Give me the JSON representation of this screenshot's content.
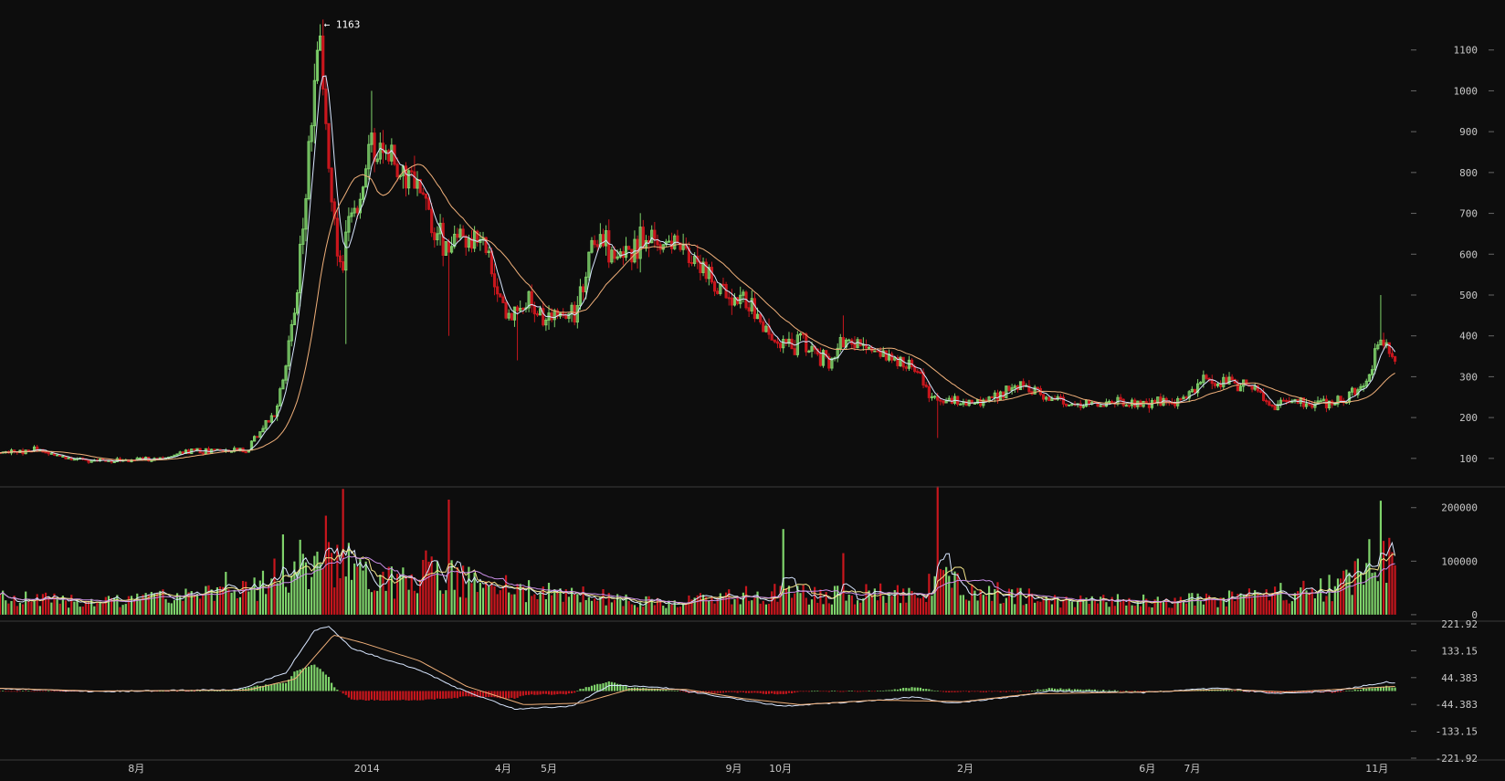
{
  "chart_data": {
    "type": "candlestick",
    "colors": {
      "background": "#0d0d0d",
      "up": "#7fd36b",
      "down": "#c8161d",
      "ma_short": "#d8e6ff",
      "ma_long": "#f0b07a",
      "volume_ma1": "#d8e6ff",
      "volume_ma2": "#f3e58a",
      "volume_ma3": "#c98ee6",
      "macd_line": "#d8e6ff",
      "signal_line": "#f0b07a",
      "grid_divider": "#3a3a3a",
      "axis_text": "#c8c8c8"
    },
    "price_panel": {
      "y_ticks": [
        "100",
        "200",
        "300",
        "400",
        "500",
        "600",
        "700",
        "800",
        "900",
        "1000",
        "1100"
      ],
      "ylim": [
        37,
        1200
      ],
      "peak_label": "← 1163",
      "peak_value": 1163,
      "anchors": [
        {
          "d": 0,
          "v": 114
        },
        {
          "d": 40,
          "v": 122
        },
        {
          "d": 70,
          "v": 100
        },
        {
          "d": 100,
          "v": 96
        },
        {
          "d": 130,
          "v": 95
        },
        {
          "d": 165,
          "v": 100
        },
        {
          "d": 200,
          "v": 117
        },
        {
          "d": 230,
          "v": 118
        },
        {
          "d": 258,
          "v": 120
        },
        {
          "d": 272,
          "v": 160
        },
        {
          "d": 290,
          "v": 220
        },
        {
          "d": 302,
          "v": 360
        },
        {
          "d": 312,
          "v": 520
        },
        {
          "d": 322,
          "v": 800
        },
        {
          "d": 330,
          "v": 1050
        },
        {
          "d": 336,
          "v": 1100
        },
        {
          "d": 342,
          "v": 900
        },
        {
          "d": 350,
          "v": 680
        },
        {
          "d": 358,
          "v": 560
        },
        {
          "d": 366,
          "v": 700
        },
        {
          "d": 376,
          "v": 720
        },
        {
          "d": 385,
          "v": 820
        },
        {
          "d": 395,
          "v": 870
        },
        {
          "d": 410,
          "v": 820
        },
        {
          "d": 425,
          "v": 790
        },
        {
          "d": 438,
          "v": 800
        },
        {
          "d": 448,
          "v": 710
        },
        {
          "d": 460,
          "v": 650
        },
        {
          "d": 472,
          "v": 600
        },
        {
          "d": 483,
          "v": 640
        },
        {
          "d": 498,
          "v": 640
        },
        {
          "d": 510,
          "v": 600
        },
        {
          "d": 520,
          "v": 510
        },
        {
          "d": 532,
          "v": 450
        },
        {
          "d": 545,
          "v": 460
        },
        {
          "d": 556,
          "v": 500
        },
        {
          "d": 570,
          "v": 440
        },
        {
          "d": 590,
          "v": 440
        },
        {
          "d": 602,
          "v": 450
        },
        {
          "d": 612,
          "v": 520
        },
        {
          "d": 620,
          "v": 620
        },
        {
          "d": 630,
          "v": 650
        },
        {
          "d": 642,
          "v": 600
        },
        {
          "d": 660,
          "v": 590
        },
        {
          "d": 675,
          "v": 640
        },
        {
          "d": 695,
          "v": 630
        },
        {
          "d": 715,
          "v": 620
        },
        {
          "d": 732,
          "v": 590
        },
        {
          "d": 748,
          "v": 520
        },
        {
          "d": 765,
          "v": 490
        },
        {
          "d": 785,
          "v": 480
        },
        {
          "d": 800,
          "v": 430
        },
        {
          "d": 815,
          "v": 380
        },
        {
          "d": 828,
          "v": 370
        },
        {
          "d": 840,
          "v": 390
        },
        {
          "d": 855,
          "v": 350
        },
        {
          "d": 870,
          "v": 340
        },
        {
          "d": 885,
          "v": 390
        },
        {
          "d": 900,
          "v": 380
        },
        {
          "d": 920,
          "v": 370
        },
        {
          "d": 940,
          "v": 340
        },
        {
          "d": 960,
          "v": 320
        },
        {
          "d": 975,
          "v": 260
        },
        {
          "d": 990,
          "v": 230
        },
        {
          "d": 1000,
          "v": 240
        },
        {
          "d": 1020,
          "v": 230
        },
        {
          "d": 1040,
          "v": 250
        },
        {
          "d": 1060,
          "v": 270
        },
        {
          "d": 1080,
          "v": 275
        },
        {
          "d": 1100,
          "v": 250
        },
        {
          "d": 1130,
          "v": 230
        },
        {
          "d": 1160,
          "v": 235
        },
        {
          "d": 1200,
          "v": 235
        },
        {
          "d": 1230,
          "v": 240
        },
        {
          "d": 1250,
          "v": 260
        },
        {
          "d": 1265,
          "v": 290
        },
        {
          "d": 1285,
          "v": 285
        },
        {
          "d": 1300,
          "v": 280
        },
        {
          "d": 1320,
          "v": 265
        },
        {
          "d": 1338,
          "v": 225
        },
        {
          "d": 1360,
          "v": 240
        },
        {
          "d": 1385,
          "v": 235
        },
        {
          "d": 1410,
          "v": 245
        },
        {
          "d": 1425,
          "v": 270
        },
        {
          "d": 1440,
          "v": 320
        },
        {
          "d": 1448,
          "v": 390
        },
        {
          "d": 1455,
          "v": 380
        },
        {
          "d": 1463,
          "v": 345
        }
      ],
      "spikes": [
        {
          "d": 336,
          "v": 1163
        },
        {
          "d": 362,
          "v": 380
        },
        {
          "d": 390,
          "v": 1000
        },
        {
          "d": 470,
          "v": 400
        },
        {
          "d": 544,
          "v": 340
        },
        {
          "d": 884,
          "v": 450
        },
        {
          "d": 985,
          "v": 150
        },
        {
          "d": 1450,
          "v": 500
        }
      ]
    },
    "volume_panel": {
      "y_ticks": [
        "0",
        "100000",
        "200000"
      ],
      "ylim": [
        -7000,
        232000
      ],
      "level_anchors": [
        {
          "d": 0,
          "v": 32000
        },
        {
          "d": 100,
          "v": 28000
        },
        {
          "d": 200,
          "v": 35000
        },
        {
          "d": 260,
          "v": 45000
        },
        {
          "d": 300,
          "v": 90000
        },
        {
          "d": 330,
          "v": 100000
        },
        {
          "d": 360,
          "v": 100000
        },
        {
          "d": 400,
          "v": 60000
        },
        {
          "d": 450,
          "v": 80000
        },
        {
          "d": 520,
          "v": 55000
        },
        {
          "d": 600,
          "v": 40000
        },
        {
          "d": 700,
          "v": 22000
        },
        {
          "d": 800,
          "v": 40000
        },
        {
          "d": 900,
          "v": 42000
        },
        {
          "d": 970,
          "v": 38000
        },
        {
          "d": 985,
          "v": 90000
        },
        {
          "d": 1010,
          "v": 60000
        },
        {
          "d": 1100,
          "v": 28000
        },
        {
          "d": 1250,
          "v": 28000
        },
        {
          "d": 1300,
          "v": 32000
        },
        {
          "d": 1400,
          "v": 55000
        },
        {
          "d": 1440,
          "v": 110000
        },
        {
          "d": 1463,
          "v": 110000
        }
      ],
      "spikes": [
        {
          "d": 342,
          "v": 185000
        },
        {
          "d": 361,
          "v": 235000
        },
        {
          "d": 470,
          "v": 215000
        },
        {
          "d": 296,
          "v": 150000
        },
        {
          "d": 314,
          "v": 140000
        },
        {
          "d": 823,
          "v": 160000
        },
        {
          "d": 984,
          "v": 240000
        },
        {
          "d": 1450,
          "v": 213000
        },
        {
          "d": 237,
          "v": 80000
        },
        {
          "d": 447,
          "v": 120000
        },
        {
          "d": 885,
          "v": 115000
        }
      ]
    },
    "macd_panel": {
      "y_ticks": [
        "221.92",
        "133.15",
        "44.383",
        "-44.383",
        "-133.15",
        "-221.92"
      ],
      "ylim": [
        -221.92,
        221.92
      ],
      "macd_anchors": [
        {
          "d": 0,
          "v": 8
        },
        {
          "d": 100,
          "v": -2
        },
        {
          "d": 250,
          "v": 5
        },
        {
          "d": 300,
          "v": 60
        },
        {
          "d": 330,
          "v": 200
        },
        {
          "d": 345,
          "v": 215
        },
        {
          "d": 370,
          "v": 140
        },
        {
          "d": 400,
          "v": 110
        },
        {
          "d": 440,
          "v": 70
        },
        {
          "d": 480,
          "v": 10
        },
        {
          "d": 540,
          "v": -60
        },
        {
          "d": 600,
          "v": -50
        },
        {
          "d": 640,
          "v": 20
        },
        {
          "d": 700,
          "v": 10
        },
        {
          "d": 760,
          "v": -20
        },
        {
          "d": 820,
          "v": -50
        },
        {
          "d": 900,
          "v": -35
        },
        {
          "d": 960,
          "v": -20
        },
        {
          "d": 1000,
          "v": -40
        },
        {
          "d": 1060,
          "v": -20
        },
        {
          "d": 1100,
          "v": 0
        },
        {
          "d": 1200,
          "v": -5
        },
        {
          "d": 1280,
          "v": 10
        },
        {
          "d": 1340,
          "v": -8
        },
        {
          "d": 1400,
          "v": 0
        },
        {
          "d": 1455,
          "v": 30
        },
        {
          "d": 1463,
          "v": 25
        }
      ],
      "signal_anchors": [
        {
          "d": 0,
          "v": 9
        },
        {
          "d": 100,
          "v": 0
        },
        {
          "d": 260,
          "v": 3
        },
        {
          "d": 310,
          "v": 40
        },
        {
          "d": 350,
          "v": 185
        },
        {
          "d": 380,
          "v": 160
        },
        {
          "d": 440,
          "v": 100
        },
        {
          "d": 490,
          "v": 15
        },
        {
          "d": 550,
          "v": -45
        },
        {
          "d": 610,
          "v": -40
        },
        {
          "d": 660,
          "v": 5
        },
        {
          "d": 720,
          "v": 5
        },
        {
          "d": 780,
          "v": -25
        },
        {
          "d": 840,
          "v": -45
        },
        {
          "d": 920,
          "v": -30
        },
        {
          "d": 1010,
          "v": -35
        },
        {
          "d": 1080,
          "v": -10
        },
        {
          "d": 1200,
          "v": -3
        },
        {
          "d": 1290,
          "v": 5
        },
        {
          "d": 1350,
          "v": -3
        },
        {
          "d": 1463,
          "v": 15
        }
      ]
    },
    "x_ticks": [
      {
        "label": "8月",
        "d": 143
      },
      {
        "label": "2014",
        "d": 385
      },
      {
        "label": "4月",
        "d": 528
      },
      {
        "label": "5月",
        "d": 576
      },
      {
        "label": "9月",
        "d": 770
      },
      {
        "label": "10月",
        "d": 819
      },
      {
        "label": "2月",
        "d": 1013
      },
      {
        "label": "6月",
        "d": 1204
      },
      {
        "label": "7月",
        "d": 1251
      },
      {
        "label": "11月",
        "d": 1445
      }
    ],
    "xlim": [
      0,
      1470
    ]
  }
}
